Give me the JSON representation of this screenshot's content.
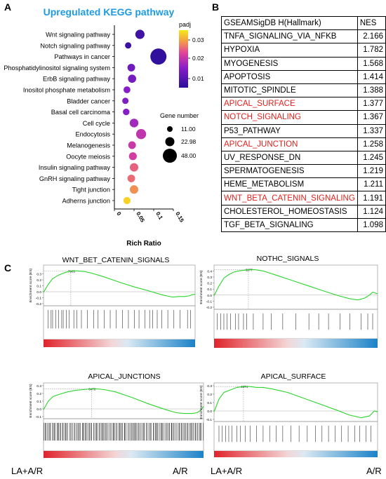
{
  "panels": {
    "a": "A",
    "b": "B",
    "c": "C"
  },
  "chart_data": [
    {
      "type": "scatter",
      "title": "Upregulated KEGG pathway",
      "xlabel": "Rich Ratio",
      "xlim": [
        0,
        0.15
      ],
      "xticks": [
        "0",
        "0.05",
        "0.1",
        "0.15"
      ],
      "categories": [
        "Wnt signaling pathway",
        "Notch signaling pathway",
        "Pathways in cancer",
        "Phosphatidylinositol signaling system",
        "ErbB signaling pathway",
        "Inositol phosphate metabolism",
        "Bladder cancer",
        "Basal cell carcinoma",
        "Cell cycle",
        "Endocytosis",
        "Melanogenesis",
        "Oocyte meiosis",
        "Insulin signaling pathway",
        "GnRH signaling pathway",
        "Tight junction",
        "Adherns junction"
      ],
      "x": [
        0.065,
        0.035,
        0.112,
        0.043,
        0.045,
        0.032,
        0.028,
        0.03,
        0.05,
        0.068,
        0.045,
        0.047,
        0.05,
        0.043,
        0.05,
        0.032
      ],
      "gene_number": [
        22,
        11,
        48,
        16,
        18,
        13,
        11,
        12,
        20,
        25,
        16,
        17,
        19,
        16,
        19,
        14
      ],
      "padj": [
        0.003,
        0.002,
        0.001,
        0.009,
        0.01,
        0.012,
        0.011,
        0.012,
        0.015,
        0.018,
        0.019,
        0.02,
        0.024,
        0.025,
        0.028,
        0.034
      ],
      "color_legend": {
        "title": "padj",
        "ticks": [
          "0.03",
          "0.02",
          "0.01"
        ],
        "range": [
          0,
          0.036
        ]
      },
      "size_legend": {
        "title": "Gene number",
        "values": [
          "11.00",
          "22.98",
          "48.00"
        ]
      }
    },
    {
      "type": "table",
      "columns": [
        "GSEAMSigDB H(Hallmark)",
        "NES"
      ],
      "rows": [
        {
          "name": "TNFA_SIGNALING_VIA_NFKB",
          "nes": "2.166",
          "highlight": false
        },
        {
          "name": "HYPOXIA",
          "nes": "1.782",
          "highlight": false
        },
        {
          "name": "MYOGENESIS",
          "nes": "1.568",
          "highlight": false
        },
        {
          "name": "APOPTOSIS",
          "nes": "1.414",
          "highlight": false
        },
        {
          "name": "MITOTIC_SPINDLE",
          "nes": "1.388",
          "highlight": false
        },
        {
          "name": "APICAL_SURFACE",
          "nes": "1.377",
          "highlight": true
        },
        {
          "name": "NOTCH_SIGNALING",
          "nes": "1.367",
          "highlight": true
        },
        {
          "name": "P53_PATHWAY",
          "nes": "1.337",
          "highlight": false
        },
        {
          "name": "APICAL_JUNCTION",
          "nes": "1.258",
          "highlight": true
        },
        {
          "name": "UV_RESPONSE_DN",
          "nes": "1.245",
          "highlight": false
        },
        {
          "name": "SPERMATOGENESIS",
          "nes": "1.219",
          "highlight": false
        },
        {
          "name": "HEME_METABOLISM",
          "nes": "1.211",
          "highlight": false
        },
        {
          "name": "WNT_BETA_CATENIN_SIGNALING",
          "nes": "1.191",
          "highlight": true
        },
        {
          "name": "CHOLESTEROL_HOMEOSTASIS",
          "nes": "1.124",
          "highlight": false
        },
        {
          "name": "TGF_BETA_SIGNALING",
          "nes": "1.098",
          "highlight": false
        }
      ]
    },
    {
      "type": "line",
      "title": "WNT_BET_CATENIN_SIGNALS",
      "ylabel": "Enrichment score (ES)",
      "ylim": [
        -0.2,
        0.4
      ],
      "yticks": [
        "0.3",
        "0.2",
        "0.1",
        "0.0",
        "-0.1",
        "-0.2"
      ],
      "peak_label": "7905",
      "x": [
        0,
        0.03,
        0.06,
        0.1,
        0.14,
        0.18,
        0.22,
        0.27,
        0.32,
        0.4,
        0.5,
        0.6,
        0.7,
        0.78,
        0.85,
        0.9,
        0.93,
        0.96,
        0.98,
        1
      ],
      "y": [
        -0.01,
        0.12,
        0.22,
        0.28,
        0.32,
        0.35,
        0.35,
        0.34,
        0.31,
        0.25,
        0.16,
        0.08,
        0.01,
        -0.05,
        -0.09,
        -0.08,
        -0.08,
        -0.07,
        -0.05,
        -0.04
      ],
      "hits": [
        0.03,
        0.05,
        0.06,
        0.08,
        0.1,
        0.12,
        0.13,
        0.15,
        0.17,
        0.2,
        0.22,
        0.25,
        0.29,
        0.33,
        0.36,
        0.4,
        0.44,
        0.48,
        0.52,
        0.56,
        0.6,
        0.63,
        0.67,
        0.7,
        0.72,
        0.75,
        0.78,
        0.82,
        0.86,
        0.9,
        0.95,
        0.97
      ]
    },
    {
      "type": "line",
      "title": "NOTHC_SIGNALS",
      "ylabel": "Enrichment score (ES)",
      "ylim": [
        -0.2,
        0.45
      ],
      "yticks": [
        "0.4",
        "0.3",
        "0.2",
        "0.1",
        "0.0",
        "-0.1",
        "-0.2"
      ],
      "peak_label": "8277",
      "x": [
        0,
        0.03,
        0.06,
        0.09,
        0.12,
        0.15,
        0.18,
        0.21,
        0.25,
        0.3,
        0.38,
        0.48,
        0.58,
        0.68,
        0.76,
        0.83,
        0.88,
        0.92,
        0.95,
        0.97,
        1
      ],
      "y": [
        -0.01,
        0.15,
        0.28,
        0.34,
        0.38,
        0.4,
        0.41,
        0.42,
        0.42,
        0.4,
        0.33,
        0.24,
        0.15,
        0.06,
        -0.01,
        -0.06,
        -0.08,
        -0.05,
        0.0,
        0.05,
        0.02
      ],
      "hits": [
        0.02,
        0.04,
        0.06,
        0.08,
        0.1,
        0.13,
        0.15,
        0.18,
        0.2,
        0.24,
        0.3,
        0.35,
        0.42,
        0.5,
        0.58,
        0.64,
        0.7,
        0.77,
        0.83,
        0.9,
        0.94,
        0.97
      ]
    },
    {
      "type": "line",
      "title": "APICAL_JUNCTIONS",
      "ylabel": "Enrichment score (ES)",
      "ylim": [
        -0.1,
        0.3
      ],
      "yticks": [
        "0.3",
        "0.2",
        "0.1",
        "0.0",
        "-0.1"
      ],
      "peak_label": "6476",
      "x": [
        0,
        0.03,
        0.06,
        0.1,
        0.15,
        0.2,
        0.25,
        0.3,
        0.33,
        0.38,
        0.45,
        0.55,
        0.65,
        0.72,
        0.78,
        0.83,
        0.88,
        0.93,
        0.96,
        0.98,
        1
      ],
      "y": [
        -0.01,
        0.1,
        0.16,
        0.19,
        0.22,
        0.24,
        0.25,
        0.26,
        0.26,
        0.25,
        0.22,
        0.15,
        0.07,
        0.02,
        -0.02,
        -0.05,
        -0.06,
        -0.06,
        -0.05,
        -0.02,
        0.03
      ],
      "hits_density": "dense"
    },
    {
      "type": "line",
      "title": "APICAL_SURFACE",
      "ylabel": "Enrichment score (ES)",
      "ylim": [
        -0.1,
        0.3
      ],
      "yticks": [
        "0.3",
        "0.2",
        "0.1",
        "0.0",
        "-0.1"
      ],
      "peak_label": "4374",
      "x": [
        0,
        0.03,
        0.06,
        0.1,
        0.14,
        0.18,
        0.22,
        0.26,
        0.3,
        0.36,
        0.45,
        0.55,
        0.65,
        0.75,
        0.83,
        0.9,
        0.95,
        0.98,
        1
      ],
      "y": [
        -0.01,
        0.14,
        0.22,
        0.25,
        0.28,
        0.29,
        0.29,
        0.28,
        0.28,
        0.26,
        0.22,
        0.15,
        0.08,
        0.01,
        -0.05,
        -0.08,
        -0.06,
        0.0,
        -0.01
      ],
      "hits": [
        0.03,
        0.05,
        0.07,
        0.09,
        0.11,
        0.14,
        0.16,
        0.19,
        0.22,
        0.26,
        0.3,
        0.34,
        0.38,
        0.42,
        0.47,
        0.52,
        0.57,
        0.62,
        0.66,
        0.7,
        0.74,
        0.78,
        0.82,
        0.86,
        0.89,
        0.93,
        0.96
      ]
    }
  ],
  "groups": {
    "left": "LA+A/R",
    "right": "A/R",
    "left2": "LA+A/R",
    "right2": "A/R"
  },
  "colors": {
    "title_blue": "#1e9be0",
    "es_line": "#2bd52b",
    "red_text": "#e0201b",
    "bar_red": "#e0232b",
    "bar_blue": "#1a82c8"
  }
}
